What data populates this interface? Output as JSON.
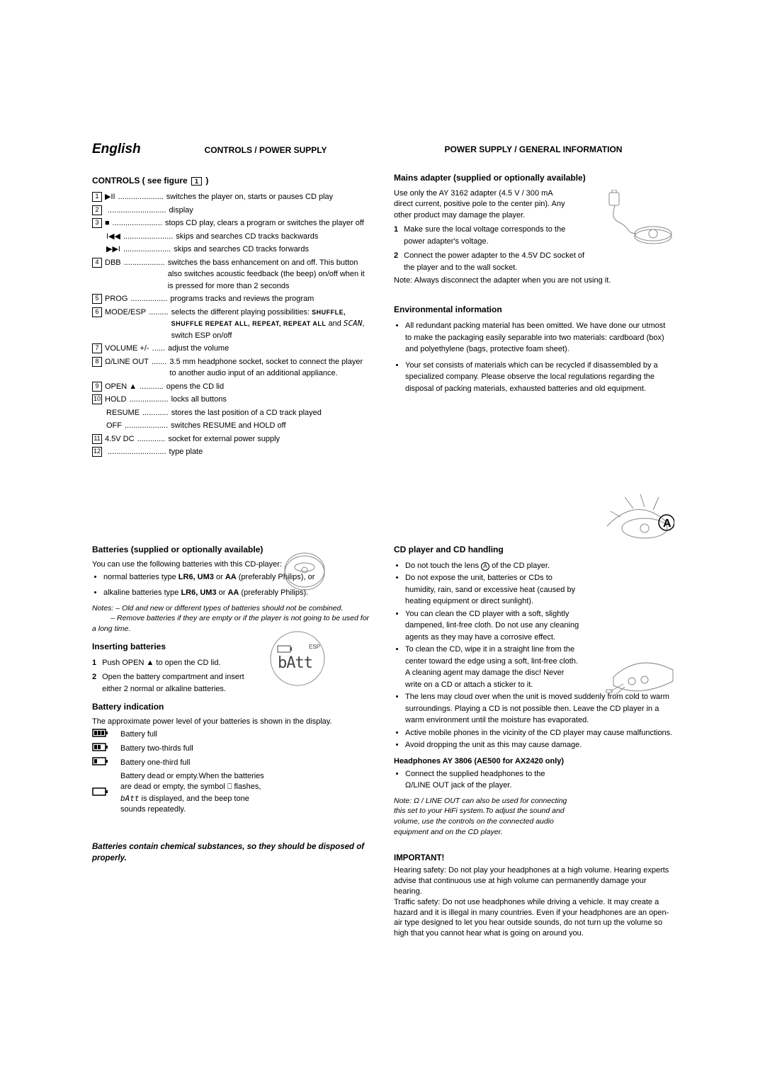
{
  "lang": "English",
  "section_left_top": "CONTROLS / POWER SUPPLY",
  "section_right_top": "POWER SUPPLY / GENERAL INFORMATION",
  "controls_heading": "CONTROLS ( see figure",
  "controls_heading_suffix": ")",
  "controls_ref": "1",
  "controls": [
    {
      "n": "1",
      "sym": "▶II",
      "dots": ".....................",
      "txt": "switches the player on, starts or pauses CD play"
    },
    {
      "n": "2",
      "sym": "",
      "dots": "...........................",
      "txt": "display"
    },
    {
      "n": "3",
      "sym": "■",
      "dots": ".......................",
      "txt": "stops CD play, clears a program or switches the player off"
    },
    {
      "n": "",
      "sym": "I◀◀",
      "dots": ".......................",
      "txt": "skips and searches CD tracks backwards",
      "indent": true
    },
    {
      "n": "",
      "sym": "▶▶I",
      "dots": "......................",
      "txt": "skips and searches CD tracks forwards",
      "indent": true
    },
    {
      "n": "4",
      "sym": "DBB",
      "dots": "...................",
      "txt": "switches the bass enhancement on and off. This button also switches acoustic feedback (the beep) on/off when it is pressed for more than 2 seconds"
    },
    {
      "n": "5",
      "sym": "PROG",
      "dots": ".................",
      "txt": "programs tracks and reviews the program"
    },
    {
      "n": "6",
      "sym": "MODE/ESP",
      "dots": ".........",
      "txt": "selects the different playing possibilities: ",
      "extra": "SHUFFLE, SHUFFLE REPEAT ALL, REPEAT, REPEAT ALL",
      "extra2": " and ",
      "scan": "SCAN",
      "extra3": ", switch ESP on/off"
    },
    {
      "n": "7",
      "sym": "VOLUME +/-",
      "dots": "......",
      "txt": "adjust the volume"
    },
    {
      "n": "8",
      "sym": "Ω/LINE OUT",
      "dots": ".......",
      "txt": "3.5 mm headphone socket, socket to connect the player to another audio input of an additional appliance."
    },
    {
      "n": "9",
      "sym": "OPEN ▲",
      "dots": "...........",
      "txt": "opens the CD lid"
    },
    {
      "n": "10",
      "sym": "HOLD",
      "dots": "..................",
      "txt": "locks all buttons"
    },
    {
      "n": "",
      "sym": "RESUME",
      "dots": "............",
      "txt": "stores the last position of a CD track played",
      "indent": true
    },
    {
      "n": "",
      "sym": "OFF",
      "dots": "....................",
      "txt": "switches RESUME and HOLD off",
      "indent": true
    },
    {
      "n": "11",
      "sym": "4.5V DC",
      "dots": ".............",
      "txt": "socket for external power supply"
    },
    {
      "n": "12",
      "sym": "",
      "dots": "...........................",
      "txt": "type plate"
    }
  ],
  "mains_head": "Mains adapter (supplied or optionally available)",
  "mains_intro": "Use only the AY 3162 adapter (4.5 V / 300 mA direct current, positive pole to the center pin). Any other product may damage the player.",
  "mains_steps": [
    {
      "n": "1",
      "t": "Make sure the local voltage corresponds to the power adapter's voltage."
    },
    {
      "n": "2",
      "t": "Connect the power adapter to the 4.5V DC socket of the player and to the wall socket."
    }
  ],
  "mains_note": "Note: Always disconnect the adapter when you are not using it.",
  "env_head": "Environmental information",
  "env_bullets": [
    "All redundant packing material has been omitted. We have done our utmost to make the packaging easily separable into two materials: cardboard (box) and polyethylene (bags, protective foam sheet).",
    "Your set consists of materials which can be recycled if disassembled by a specialized company. Please observe the local regulations regarding the disposal of packing materials, exhausted batteries and old equipment."
  ],
  "batt_head": "Batteries (supplied or optionally available)",
  "batt_intro": "You can use the following batteries with this CD-player:",
  "batt_types": [
    {
      "prefix": "normal batteries type ",
      "bold": "LR6, UM3",
      "mid": " or ",
      "bold2": "AA",
      "suffix": " (preferably Philips), or"
    },
    {
      "prefix": "alkaline batteries type ",
      "bold": "LR6, UM3",
      "mid": " or ",
      "bold2": "AA",
      "suffix": " (preferably Philips)."
    }
  ],
  "batt_notes_label": "Notes:",
  "batt_notes": [
    "– Old and new or different types of batteries should not be combined.",
    "– Remove batteries if they are empty or if the player is not going to be used for a long time."
  ],
  "insert_head": "Inserting batteries",
  "insert_steps": [
    {
      "n": "1",
      "t": "Push OPEN ▲ to open the CD lid."
    },
    {
      "n": "2",
      "t": "Open the battery compartment and insert either 2 normal or alkaline batteries."
    }
  ],
  "battind_head": "Battery indication",
  "battind_intro": "The approximate power level of your batteries is shown in the display.",
  "batt_levels": [
    {
      "fill": 3,
      "t": "Battery full"
    },
    {
      "fill": 2,
      "t": "Battery two-thirds full"
    },
    {
      "fill": 1,
      "t": "Battery one-third full"
    },
    {
      "fill": 0,
      "t": "Battery dead or empty.When the batteries are dead or empty, the symbol ⎕ flashes, ",
      "extra_scan": "bAtt",
      "extra": " is displayed, and the beep tone sounds repeatedly."
    }
  ],
  "batt_warning": "Batteries contain chemical substances, so they should be disposed of properly.",
  "cd_head": "CD player and CD handling",
  "cd_bullets": [
    {
      "t": "Do not touch the lens ",
      "circ": "A",
      "suffix": " of the CD player."
    },
    {
      "t": "Do not expose the unit, batteries or CDs to humidity, rain, sand or excessive heat (caused by heating equipment or direct sunlight)."
    },
    {
      "t": "You can clean the CD player with a soft, slightly dampened, lint-free cloth. Do not use any cleaning agents as they may have a corrosive effect."
    },
    {
      "t": "To clean the CD, wipe it in a straight line from the center toward the edge using a soft, lint-free cloth. A cleaning agent may damage the disc! Never write on a CD or attach a sticker to it."
    },
    {
      "t": "The lens may cloud over when the unit is moved suddenly from cold to warm surroundings. Playing a CD is not possible then. Leave the CD player in a warm environment until the moisture has evaporated."
    },
    {
      "t": "Active mobile phones in the vicinity of the CD player may cause malfunctions."
    },
    {
      "t": "Avoid dropping the unit as this may cause damage."
    }
  ],
  "hp_head": "Headphones AY 3806 (AE500 for AX2420 only)",
  "hp_bullet": "Connect the supplied headphones to the Ω/LINE OUT jack of the player.",
  "hp_note_lead": "Note:",
  "hp_note": " Ω / LINE OUT can also be used for connecting this set to your HiFi system.To adjust the sound and volume, use the controls on the connected audio equipment and on the CD player.",
  "important_head": "IMPORTANT!",
  "important_p1": "Hearing safety: Do not play your headphones at a high volume. Hearing experts advise that continuous use at high volume can permanently damage your hearing.",
  "important_p2": "Traffic safety: Do not use headphones while driving a vehicle. It may create a hazard and it is illegal in many countries. Even if your headphones are an open-air type designed to let you hear outside sounds, do not turn up the volume so high that you cannot hear what is going on around you."
}
